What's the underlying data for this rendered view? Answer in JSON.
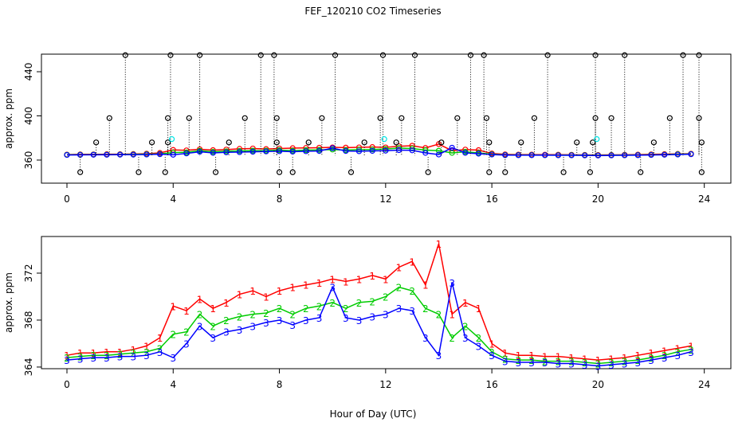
{
  "chart_data": [
    {
      "type": "line",
      "title": "FEF_120210  CO2 Timeseries",
      "ylabel": "approx. ppm",
      "xlim": [
        -0.96,
        25.0
      ],
      "ylim": [
        339.1,
        455.9
      ],
      "xticks": [
        0,
        4,
        8,
        12,
        16,
        20,
        24
      ],
      "yticks": [
        360,
        400,
        440
      ],
      "x": [
        0,
        0.5,
        1,
        1.5,
        2,
        2.5,
        3,
        3.5,
        4,
        4.5,
        5,
        5.5,
        6,
        6.5,
        7,
        7.5,
        8,
        8.5,
        9,
        9.5,
        10,
        10.5,
        11,
        11.5,
        12,
        12.5,
        13,
        13.5,
        14,
        14.5,
        15,
        15.5,
        16,
        16.5,
        17,
        17.5,
        18,
        18.5,
        19,
        19.5,
        20,
        20.5,
        21,
        21.5,
        22,
        22.5,
        23,
        23.5
      ],
      "series": [
        {
          "color": "#ff0000",
          "marker": "circle",
          "line": true,
          "values": [
            365.0,
            365.2,
            365.2,
            365.3,
            365.3,
            365.5,
            365.8,
            366.5,
            369.2,
            368.8,
            369.8,
            369.0,
            369.5,
            370.2,
            370.5,
            370.0,
            370.5,
            370.8,
            371.0,
            371.2,
            371.5,
            371.3,
            371.5,
            371.8,
            371.5,
            372.5,
            373.0,
            371.0,
            374.5,
            368.5,
            369.5,
            369.0,
            366.0,
            365.2,
            365.0,
            365.0,
            364.9,
            364.9,
            364.8,
            364.7,
            364.6,
            364.7,
            364.8,
            365.0,
            365.2,
            365.4,
            365.6,
            365.8
          ]
        },
        {
          "color": "#00cc00",
          "marker": "circle",
          "line": true,
          "values": [
            364.8,
            364.9,
            365.0,
            365.0,
            365.1,
            365.2,
            365.3,
            365.6,
            366.8,
            367.0,
            368.5,
            367.5,
            368.0,
            368.3,
            368.5,
            368.6,
            369.0,
            368.5,
            369.0,
            369.2,
            369.5,
            369.0,
            369.5,
            369.6,
            370.0,
            370.8,
            370.5,
            369.0,
            368.5,
            366.5,
            367.5,
            366.5,
            365.3,
            364.7,
            364.6,
            364.6,
            364.5,
            364.5,
            364.5,
            364.4,
            364.3,
            364.4,
            364.5,
            364.6,
            364.8,
            365.0,
            365.3,
            365.5
          ]
        },
        {
          "color": "#0000ff",
          "marker": "circle",
          "line": true,
          "values": [
            364.6,
            364.7,
            364.8,
            364.8,
            364.9,
            364.9,
            365.0,
            365.3,
            364.8,
            366.0,
            367.5,
            366.5,
            367.0,
            367.2,
            367.5,
            367.8,
            368.0,
            367.6,
            368.0,
            368.2,
            370.8,
            368.2,
            368.0,
            368.3,
            368.5,
            369.0,
            368.8,
            366.5,
            365.0,
            371.2,
            366.5,
            365.8,
            365.0,
            364.5,
            364.4,
            364.4,
            364.4,
            364.3,
            364.3,
            364.2,
            364.1,
            364.2,
            364.3,
            364.4,
            364.6,
            364.8,
            365.0,
            365.3
          ]
        },
        {
          "color": "#000000",
          "marker": "circle",
          "line": false,
          "spikes": true,
          "x": [
            0.5,
            1.1,
            1.6,
            2.2,
            2.7,
            3.2,
            3.7,
            3.8,
            3.8,
            3.9,
            4.6,
            5.0,
            5.6,
            6.1,
            6.7,
            7.3,
            7.8,
            7.9,
            7.9,
            8.0,
            8.5,
            9.1,
            9.6,
            10.1,
            10.7,
            11.2,
            11.8,
            11.9,
            12.4,
            12.6,
            13.1,
            13.6,
            14.1,
            14.7,
            15.2,
            15.7,
            15.8,
            15.9,
            15.9,
            16.5,
            17.1,
            17.6,
            18.1,
            18.7,
            19.2,
            19.7,
            19.8,
            19.9,
            19.9,
            20.5,
            21.0,
            21.6,
            22.1,
            22.7,
            23.2,
            23.8,
            23.8,
            23.9,
            23.9
          ],
          "values": [
            349,
            376,
            398,
            455,
            349,
            376,
            349,
            376,
            398,
            455,
            398,
            455,
            349,
            376,
            398,
            455,
            455,
            398,
            376,
            349,
            349,
            376,
            398,
            455,
            349,
            376,
            398,
            455,
            376,
            398,
            455,
            349,
            376,
            398,
            455,
            455,
            398,
            376,
            349,
            349,
            376,
            398,
            455,
            349,
            376,
            349,
            376,
            398,
            455,
            398,
            455,
            349,
            376,
            398,
            455,
            455,
            398,
            376,
            349
          ]
        },
        {
          "color": "#00e5e5",
          "marker": "circle",
          "line": false,
          "x": [
            3.95,
            11.95,
            19.95
          ],
          "values": [
            379,
            379,
            379
          ]
        }
      ]
    },
    {
      "type": "line",
      "ylabel": "approx. ppm",
      "xlabel": "Hour of Day (UTC)",
      "xlim": [
        -0.96,
        25.0
      ],
      "ylim": [
        363.86,
        375.12
      ],
      "xticks": [
        0,
        4,
        8,
        12,
        16,
        20,
        24
      ],
      "yticks": [
        364,
        368,
        372
      ],
      "x": [
        0,
        0.5,
        1,
        1.5,
        2,
        2.5,
        3,
        3.5,
        4,
        4.5,
        5,
        5.5,
        6,
        6.5,
        7,
        7.5,
        8,
        8.5,
        9,
        9.5,
        10,
        10.5,
        11,
        11.5,
        12,
        12.5,
        13,
        13.5,
        14,
        14.5,
        15,
        15.5,
        16,
        16.5,
        17,
        17.5,
        18,
        18.5,
        19,
        19.5,
        20,
        20.5,
        21,
        21.5,
        22,
        22.5,
        23,
        23.5
      ],
      "series": [
        {
          "color": "#ff0000",
          "marker": "1",
          "line": true,
          "values": [
            365.0,
            365.2,
            365.2,
            365.3,
            365.3,
            365.5,
            365.8,
            366.5,
            369.2,
            368.8,
            369.8,
            369.0,
            369.5,
            370.2,
            370.5,
            370.0,
            370.5,
            370.8,
            371.0,
            371.2,
            371.5,
            371.3,
            371.5,
            371.8,
            371.5,
            372.5,
            373.0,
            371.0,
            374.5,
            368.5,
            369.5,
            369.0,
            366.0,
            365.2,
            365.0,
            365.0,
            364.9,
            364.9,
            364.8,
            364.7,
            364.6,
            364.7,
            364.8,
            365.0,
            365.2,
            365.4,
            365.6,
            365.8
          ]
        },
        {
          "color": "#00cc00",
          "marker": "2",
          "line": true,
          "values": [
            364.8,
            364.9,
            365.0,
            365.0,
            365.1,
            365.2,
            365.3,
            365.6,
            366.8,
            367.0,
            368.5,
            367.5,
            368.0,
            368.3,
            368.5,
            368.6,
            369.0,
            368.5,
            369.0,
            369.2,
            369.5,
            369.0,
            369.5,
            369.6,
            370.0,
            370.8,
            370.5,
            369.0,
            368.5,
            366.5,
            367.5,
            366.5,
            365.3,
            364.7,
            364.6,
            364.6,
            364.5,
            364.5,
            364.5,
            364.4,
            364.3,
            364.4,
            364.5,
            364.6,
            364.8,
            365.0,
            365.3,
            365.5
          ]
        },
        {
          "color": "#0000ff",
          "marker": "3",
          "line": true,
          "values": [
            364.6,
            364.7,
            364.8,
            364.8,
            364.9,
            364.9,
            365.0,
            365.3,
            364.8,
            366.0,
            367.5,
            366.5,
            367.0,
            367.2,
            367.5,
            367.8,
            368.0,
            367.6,
            368.0,
            368.2,
            370.8,
            368.2,
            368.0,
            368.3,
            368.5,
            369.0,
            368.8,
            366.5,
            365.0,
            371.2,
            366.5,
            365.8,
            365.0,
            364.5,
            364.4,
            364.4,
            364.4,
            364.3,
            364.3,
            364.2,
            364.1,
            364.2,
            364.3,
            364.4,
            364.6,
            364.8,
            365.0,
            365.3
          ]
        }
      ]
    }
  ]
}
